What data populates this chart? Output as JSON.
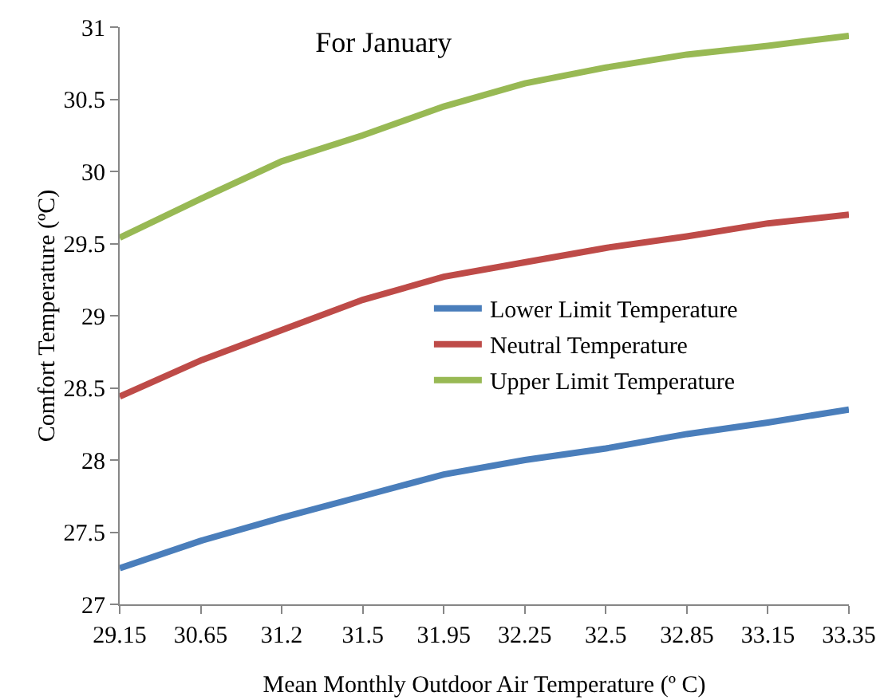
{
  "chart_data": {
    "type": "line",
    "title": "For January",
    "xlabel": "Mean Monthly Outdoor Air Temperature (º C)",
    "ylabel": "Comfort Temperature (ºC)",
    "categories": [
      "29.15",
      "30.65",
      "31.2",
      "31.5",
      "31.95",
      "32.25",
      "32.5",
      "32.85",
      "33.15",
      "33.35"
    ],
    "series": [
      {
        "name": "Lower Limit Temperature",
        "color": "#4a7ebb",
        "values": [
          27.25,
          27.44,
          27.6,
          27.75,
          27.9,
          28.0,
          28.08,
          28.18,
          28.26,
          28.35
        ]
      },
      {
        "name": "Neutral Temperature",
        "color": "#be4b48",
        "values": [
          28.44,
          28.69,
          28.9,
          29.11,
          29.27,
          29.37,
          29.47,
          29.55,
          29.64,
          29.7
        ]
      },
      {
        "name": "Upper Limit Temperature",
        "color": "#98b954",
        "values": [
          29.54,
          29.81,
          30.07,
          30.25,
          30.45,
          30.61,
          30.72,
          30.81,
          30.87,
          30.94
        ]
      }
    ],
    "ylim": [
      27,
      31
    ],
    "yticks": [
      27,
      27.5,
      28,
      28.5,
      29,
      29.5,
      30,
      30.5,
      31
    ],
    "grid": false,
    "legend": "center",
    "marker": "none",
    "line_style": "solid"
  }
}
